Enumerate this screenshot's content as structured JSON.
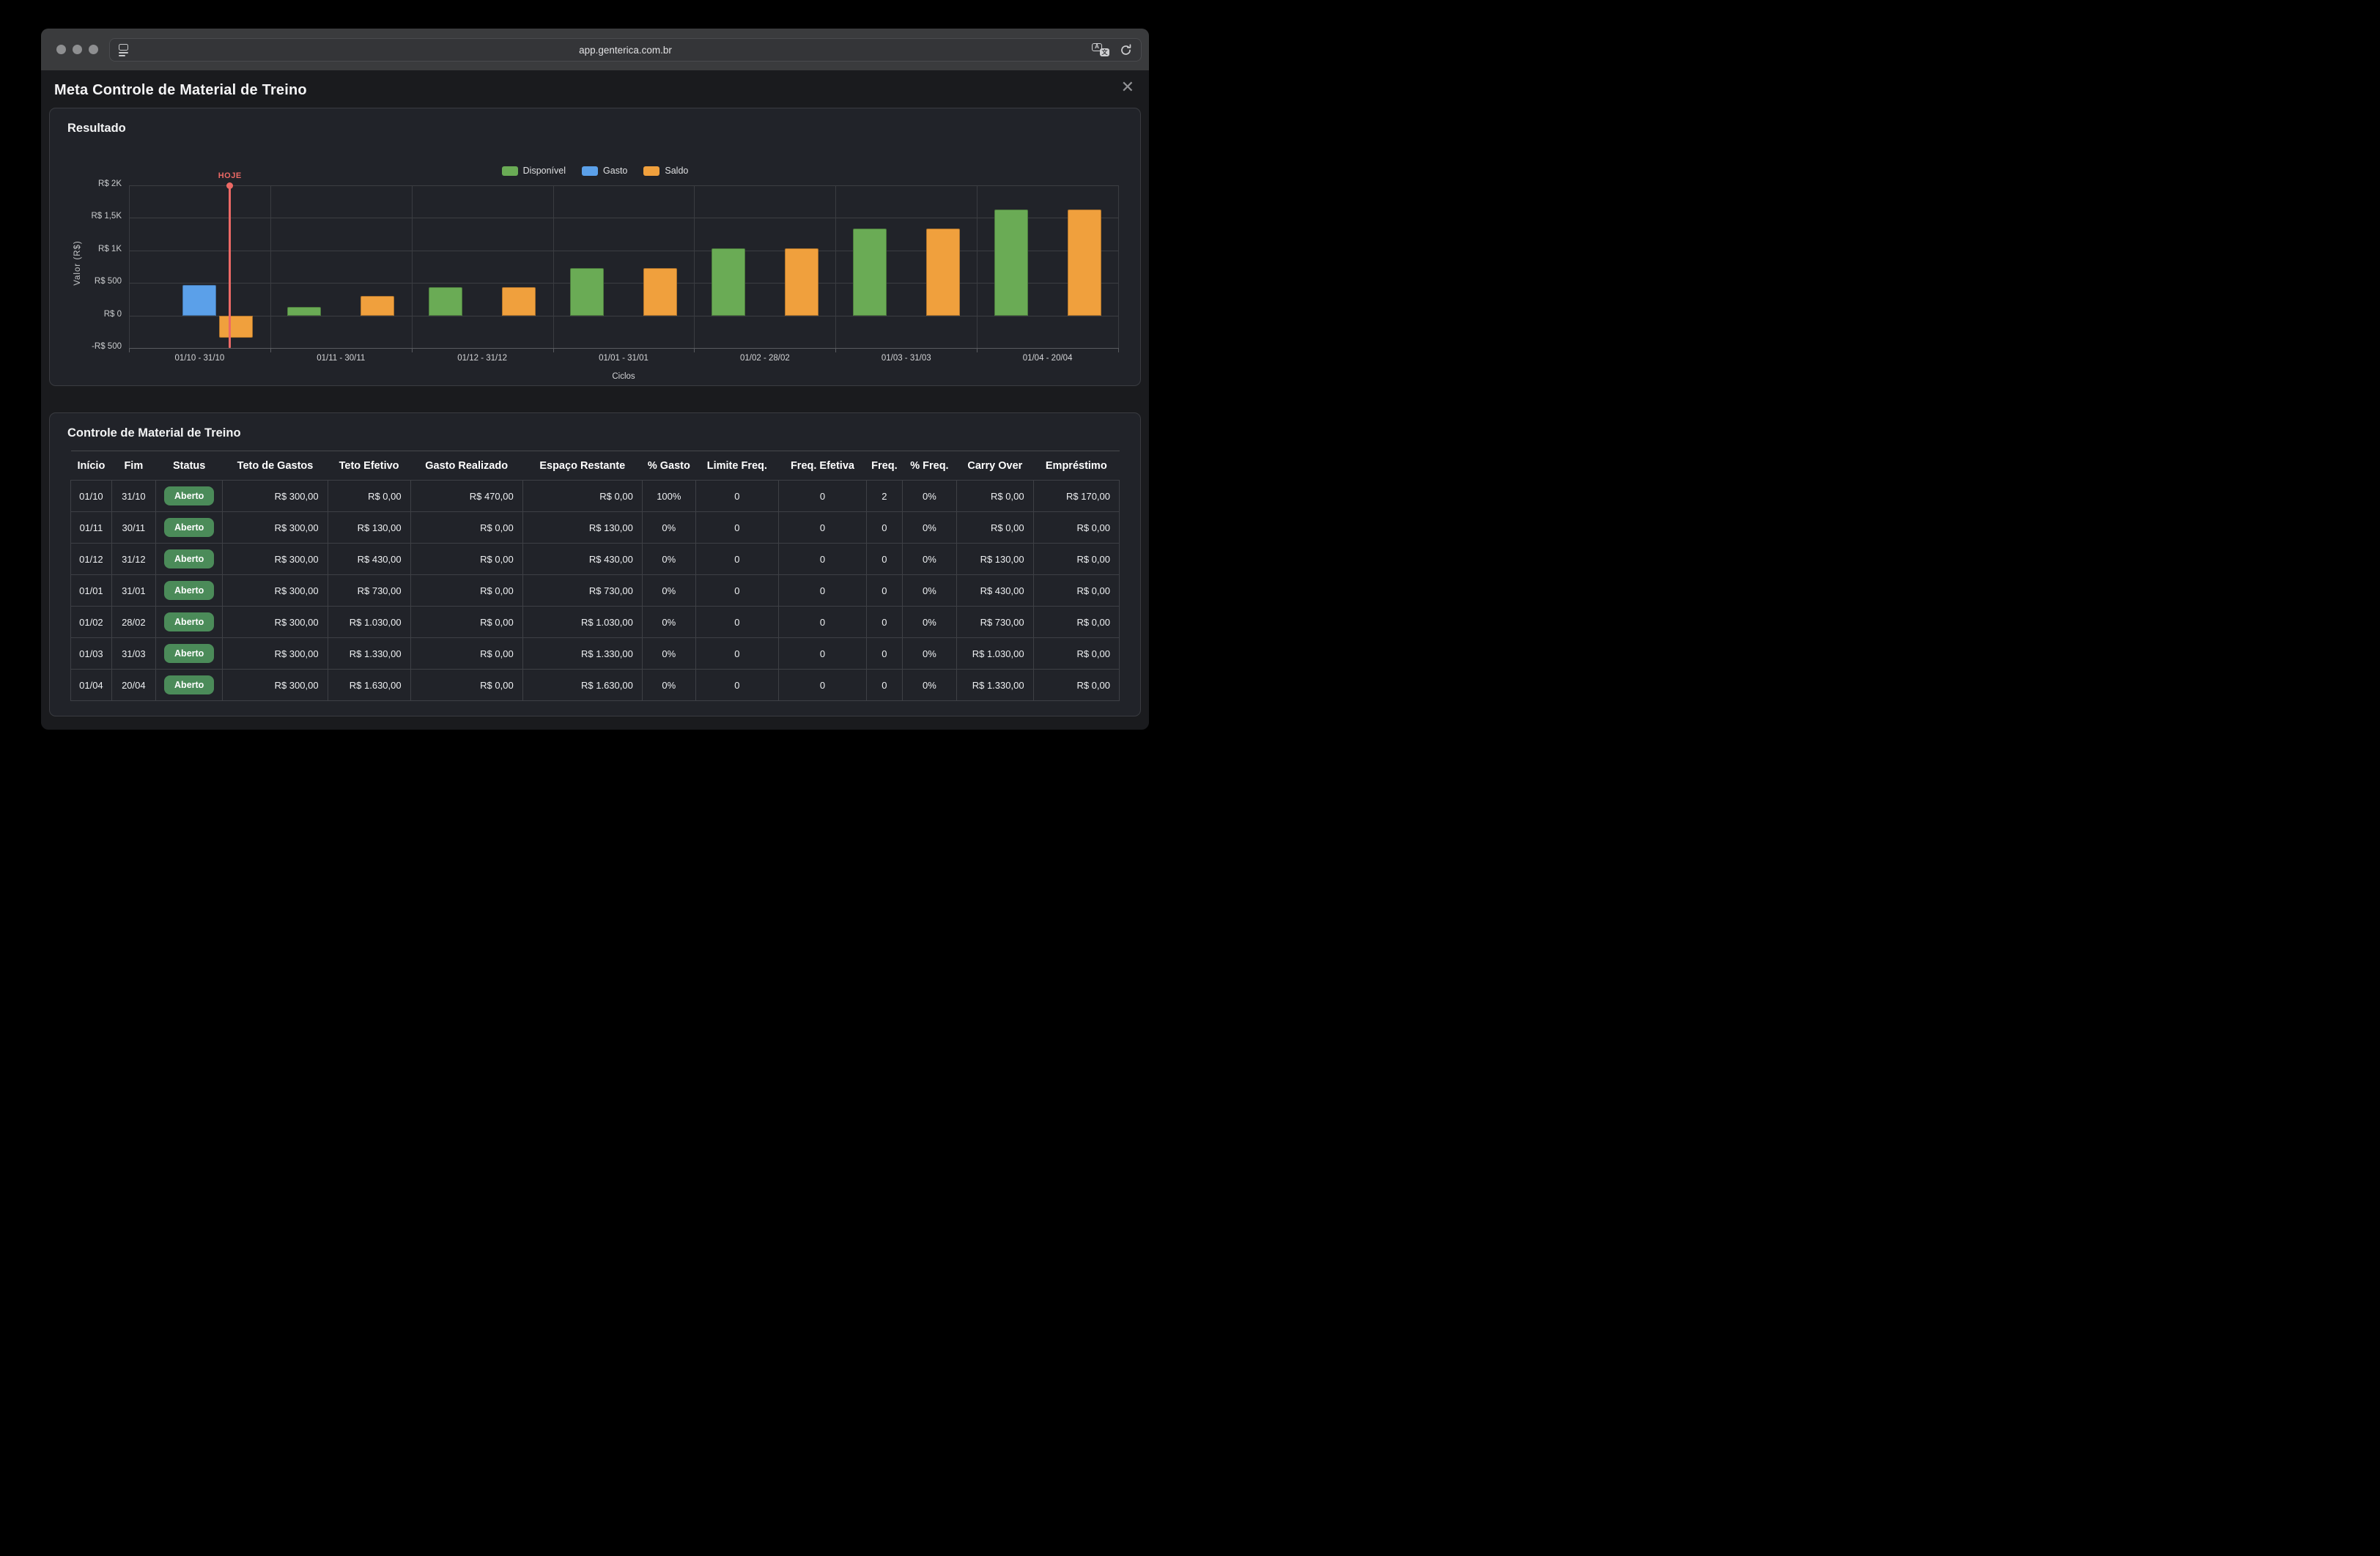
{
  "browser": {
    "url": "app.genterica.com.br"
  },
  "icons": {
    "close": "✕",
    "sidebar": "sidebar-panel",
    "translate": "A文",
    "reload": "⟳"
  },
  "page": {
    "title": "Meta Controle de Material de Treino"
  },
  "chart_panel": {
    "heading": "Resultado"
  },
  "chart_data": {
    "type": "bar",
    "title": "Resultado",
    "categories": [
      "01/10 - 31/10",
      "01/11 - 30/11",
      "01/12 - 31/12",
      "01/01 - 31/01",
      "01/02 - 28/02",
      "01/03 - 31/03",
      "01/04 - 20/04"
    ],
    "series": [
      {
        "name": "Disponível",
        "color": "#6aab55",
        "values": [
          0,
          130,
          430,
          730,
          1030,
          1330,
          1630
        ]
      },
      {
        "name": "Gasto",
        "color": "#5ba0e9",
        "values": [
          470,
          0,
          0,
          0,
          0,
          0,
          0
        ]
      },
      {
        "name": "Saldo",
        "color": "#f0a03d",
        "values": [
          -340,
          300,
          430,
          730,
          1030,
          1330,
          1630
        ]
      }
    ],
    "xlabel": "Ciclos",
    "ylabel": "Valor (R$)",
    "y_ticks": [
      {
        "label": "R$ 2K",
        "value": 2000
      },
      {
        "label": "R$ 1,5K",
        "value": 1500
      },
      {
        "label": "R$ 1K",
        "value": 1000
      },
      {
        "label": "R$ 500",
        "value": 500
      },
      {
        "label": "R$ 0",
        "value": 0
      },
      {
        "label": "-R$ 500",
        "value": -500
      }
    ],
    "ylim": [
      -500,
      2000
    ],
    "grid": true,
    "legend_position": "top-center",
    "annotation": {
      "label": "HOJE",
      "color": "#ec6965",
      "x_fraction": 0.102
    }
  },
  "table_panel": {
    "heading": "Controle de Material de Treino",
    "status_badge_color": "#4b8b59",
    "columns": [
      "Início",
      "Fim",
      "Status",
      "Teto de Gastos",
      "Teto Efetivo",
      "Gasto Realizado",
      "Espaço Restante",
      "% Gasto",
      "Limite Freq.",
      "Freq. Efetiva",
      "Freq.",
      "% Freq.",
      "Carry Over",
      "Empréstimo"
    ],
    "rows": [
      [
        "01/10",
        "31/10",
        "Aberto",
        "R$ 300,00",
        "R$ 0,00",
        "R$ 470,00",
        "R$ 0,00",
        "100%",
        "0",
        "0",
        "2",
        "0%",
        "R$ 0,00",
        "R$ 170,00"
      ],
      [
        "01/11",
        "30/11",
        "Aberto",
        "R$ 300,00",
        "R$ 130,00",
        "R$ 0,00",
        "R$ 130,00",
        "0%",
        "0",
        "0",
        "0",
        "0%",
        "R$ 0,00",
        "R$ 0,00"
      ],
      [
        "01/12",
        "31/12",
        "Aberto",
        "R$ 300,00",
        "R$ 430,00",
        "R$ 0,00",
        "R$ 430,00",
        "0%",
        "0",
        "0",
        "0",
        "0%",
        "R$ 130,00",
        "R$ 0,00"
      ],
      [
        "01/01",
        "31/01",
        "Aberto",
        "R$ 300,00",
        "R$ 730,00",
        "R$ 0,00",
        "R$ 730,00",
        "0%",
        "0",
        "0",
        "0",
        "0%",
        "R$ 430,00",
        "R$ 0,00"
      ],
      [
        "01/02",
        "28/02",
        "Aberto",
        "R$ 300,00",
        "R$ 1.030,00",
        "R$ 0,00",
        "R$ 1.030,00",
        "0%",
        "0",
        "0",
        "0",
        "0%",
        "R$ 730,00",
        "R$ 0,00"
      ],
      [
        "01/03",
        "31/03",
        "Aberto",
        "R$ 300,00",
        "R$ 1.330,00",
        "R$ 0,00",
        "R$ 1.330,00",
        "0%",
        "0",
        "0",
        "0",
        "0%",
        "R$ 1.030,00",
        "R$ 0,00"
      ],
      [
        "01/04",
        "20/04",
        "Aberto",
        "R$ 300,00",
        "R$ 1.630,00",
        "R$ 0,00",
        "R$ 1.630,00",
        "0%",
        "0",
        "0",
        "0",
        "0%",
        "R$ 1.330,00",
        "R$ 0,00"
      ]
    ]
  }
}
